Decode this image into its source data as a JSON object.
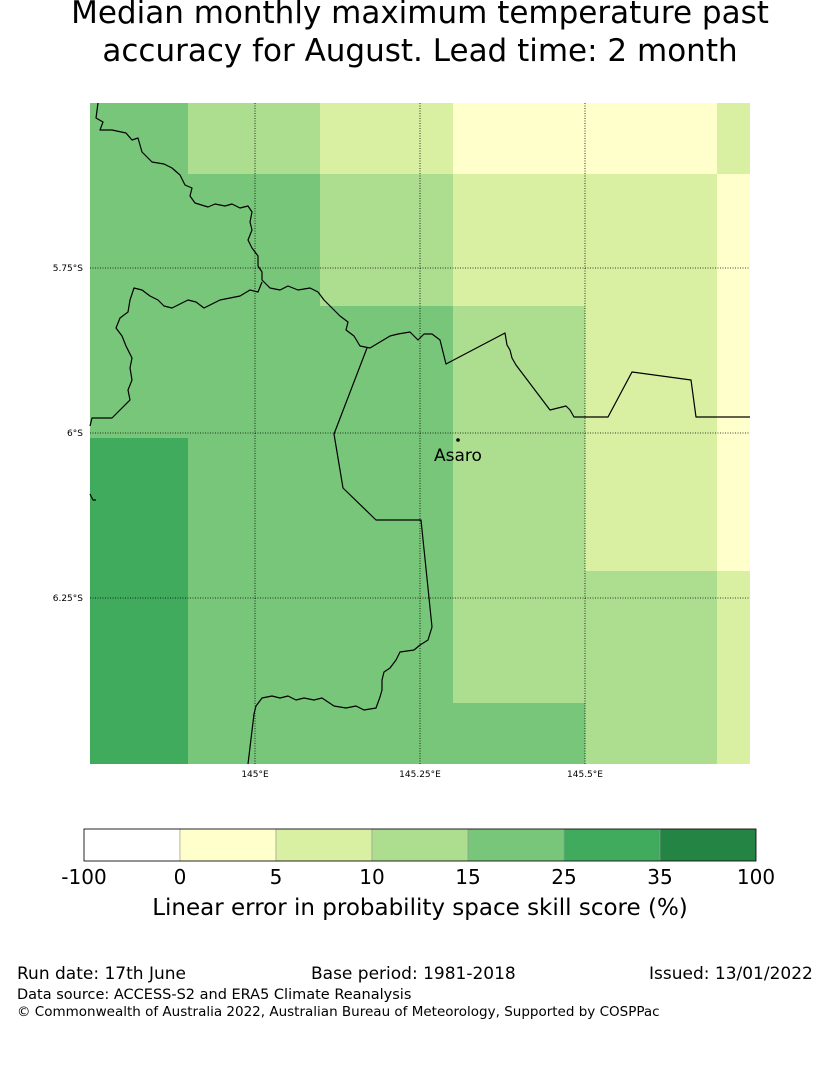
{
  "title": {
    "line1": "Median monthly maximum temperature past",
    "line2": "accuracy for August. Lead time: 2 month"
  },
  "map": {
    "lat_labels": [
      "5.75°S",
      "6°S",
      "6.25°S"
    ],
    "lon_labels": [
      "145°E",
      "145.25°E",
      "145.5°E"
    ],
    "place_label": "Asaro"
  },
  "colorbar": {
    "ticks": [
      "-100",
      "0",
      "5",
      "10",
      "15",
      "25",
      "35",
      "100"
    ],
    "colors": [
      "#ffffff",
      "#ffffcc",
      "#d9f0a3",
      "#addd8e",
      "#78c679",
      "#41ab5d",
      "#238443"
    ],
    "label": "Linear error in probability space skill score (%)"
  },
  "footer": {
    "run_date": "Run date: 17th June",
    "base_period": "Base period: 1981-2018",
    "issued": "Issued: 13/01/2022",
    "data_source": "Data source: ACCESS-S2 and ERA5 Climate Reanalysis",
    "copyright": "© Commonwealth of Australia 2022, Australian Bureau of Meteorology, Supported by COSPPac"
  }
}
